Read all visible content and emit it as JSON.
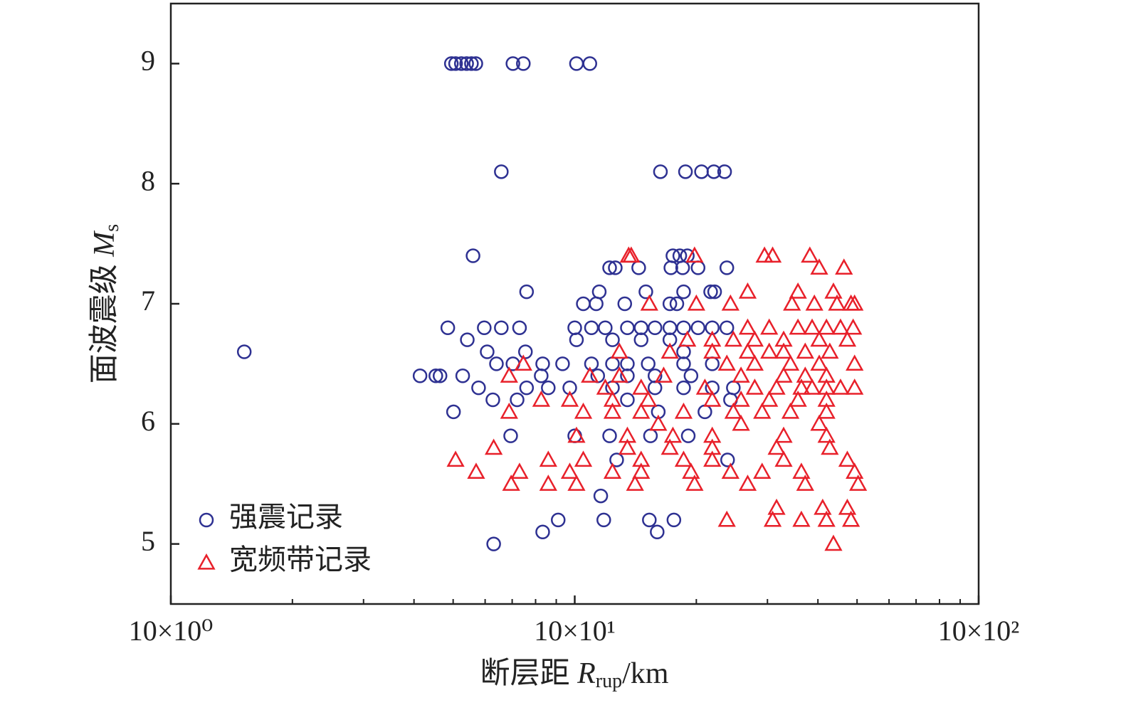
{
  "chart_data": {
    "type": "scatter",
    "xlabel": [
      "断层距 ",
      "R",
      "rup",
      "/km"
    ],
    "ylabel": [
      "面波震级 ",
      "M",
      "s"
    ],
    "xscale": "log",
    "xlim": [
      10,
      1000
    ],
    "xticks": [
      {
        "value": 10,
        "label": "10×10⁰"
      },
      {
        "value": 100,
        "label": "10×10¹"
      },
      {
        "value": 1000,
        "label": "10×10²"
      }
    ],
    "xminorticks": [
      20,
      30,
      40,
      50,
      60,
      70,
      80,
      90,
      200,
      300,
      400,
      500,
      600,
      700,
      800,
      900
    ],
    "ylim": [
      4.5,
      9.5
    ],
    "yticks": [
      5,
      6,
      7,
      8,
      9
    ],
    "legend": "lower left",
    "series": [
      {
        "name": "强震记录",
        "color": "#2e3192",
        "marker": "circle",
        "x": [
          49.5,
          50.7,
          52.4,
          54,
          55.5,
          56.9,
          70.3,
          74.6,
          101,
          109,
          65.8,
          163,
          188,
          206,
          221,
          235,
          56,
          175,
          182,
          190,
          122,
          126,
          144,
          173,
          185,
          202,
          238,
          76,
          115,
          150,
          186,
          217,
          222,
          105,
          113,
          133,
          172,
          179,
          15.2,
          48.5,
          59.7,
          65.8,
          73,
          100,
          110,
          119,
          135,
          146,
          158,
          172,
          186,
          202,
          219,
          238,
          54.2,
          101,
          124,
          146,
          172,
          60.7,
          75.5,
          186,
          64,
          70.3,
          83.3,
          93.3,
          110,
          124,
          135,
          152,
          186,
          219,
          41.4,
          45.3,
          46.4,
          52.8,
          82.6,
          114,
          135,
          158,
          194,
          57.8,
          76,
          86,
          97.2,
          124,
          158,
          186,
          219,
          247,
          62.7,
          72,
          135,
          243,
          50.1,
          161,
          210,
          69.4,
          100,
          122,
          154,
          191,
          127,
          239,
          116,
          91,
          118,
          153,
          176,
          83.3,
          160,
          63
        ],
        "values": [
          9,
          9,
          9,
          9,
          9,
          9,
          9,
          9,
          9,
          9,
          8.1,
          8.1,
          8.1,
          8.1,
          8.1,
          8.1,
          7.4,
          7.4,
          7.4,
          7.4,
          7.3,
          7.3,
          7.3,
          7.3,
          7.3,
          7.3,
          7.3,
          7.1,
          7.1,
          7.1,
          7.1,
          7.1,
          7.1,
          7,
          7,
          7,
          7,
          7,
          6.6,
          6.8,
          6.8,
          6.8,
          6.8,
          6.8,
          6.8,
          6.8,
          6.8,
          6.8,
          6.8,
          6.8,
          6.8,
          6.8,
          6.8,
          6.8,
          6.7,
          6.7,
          6.7,
          6.7,
          6.7,
          6.6,
          6.6,
          6.6,
          6.5,
          6.5,
          6.5,
          6.5,
          6.5,
          6.5,
          6.5,
          6.5,
          6.5,
          6.5,
          6.4,
          6.4,
          6.4,
          6.4,
          6.4,
          6.4,
          6.4,
          6.4,
          6.4,
          6.3,
          6.3,
          6.3,
          6.3,
          6.3,
          6.3,
          6.3,
          6.3,
          6.3,
          6.2,
          6.2,
          6.2,
          6.2,
          6.1,
          6.1,
          6.1,
          5.9,
          5.9,
          5.9,
          5.9,
          5.9,
          5.7,
          5.7,
          5.4,
          5.2,
          5.2,
          5.2,
          5.2,
          5.1,
          5.1,
          5
        ]
      },
      {
        "name": "宽频带记录",
        "color": "#e8202a",
        "marker": "triangle",
        "x": [
          136,
          138,
          198,
          295,
          309,
          382,
          403,
          464,
          268,
          357,
          437,
          153,
          200,
          243,
          345,
          392,
          446,
          483,
          493,
          268,
          303,
          357,
          387,
          420,
          455,
          489,
          190,
          219,
          247,
          279,
          329,
          403,
          473,
          129,
          172,
          219,
          268,
          303,
          329,
          372,
          428,
          74.6,
          238,
          279,
          342,
          403,
          493,
          68.8,
          109,
          129,
          166,
          258,
          329,
          372,
          420,
          119,
          146,
          210,
          279,
          316,
          364,
          387,
          420,
          455,
          493,
          82.6,
          97.2,
          124,
          152,
          219,
          258,
          303,
          357,
          420,
          68.8,
          105,
          124,
          146,
          186,
          247,
          291,
          342,
          420,
          161,
          258,
          403,
          101,
          135,
          175,
          219,
          329,
          420,
          63,
          135,
          172,
          219,
          316,
          428,
          50.7,
          86,
          105,
          146,
          186,
          219,
          329,
          473,
          57,
          73,
          97.2,
          124,
          146,
          194,
          243,
          291,
          364,
          493,
          69.6,
          86,
          101,
          141,
          198,
          268,
          372,
          503,
          316,
          411,
          473,
          238,
          309,
          364,
          420,
          483,
          437
        ],
        "values": [
          7.4,
          7.4,
          7.4,
          7.4,
          7.4,
          7.4,
          7.3,
          7.3,
          7.1,
          7.1,
          7.1,
          7,
          7,
          7,
          7,
          7,
          7,
          7,
          7,
          6.8,
          6.8,
          6.8,
          6.8,
          6.8,
          6.8,
          6.8,
          6.7,
          6.7,
          6.7,
          6.7,
          6.7,
          6.7,
          6.7,
          6.6,
          6.6,
          6.6,
          6.6,
          6.6,
          6.6,
          6.6,
          6.6,
          6.5,
          6.5,
          6.5,
          6.5,
          6.5,
          6.5,
          6.4,
          6.4,
          6.4,
          6.4,
          6.4,
          6.4,
          6.4,
          6.4,
          6.3,
          6.3,
          6.3,
          6.3,
          6.3,
          6.3,
          6.3,
          6.3,
          6.3,
          6.3,
          6.2,
          6.2,
          6.2,
          6.2,
          6.2,
          6.2,
          6.2,
          6.2,
          6.2,
          6.1,
          6.1,
          6.1,
          6.1,
          6.1,
          6.1,
          6.1,
          6.1,
          6.1,
          6,
          6,
          6,
          5.9,
          5.9,
          5.9,
          5.9,
          5.9,
          5.9,
          5.8,
          5.8,
          5.8,
          5.8,
          5.8,
          5.8,
          5.7,
          5.7,
          5.7,
          5.7,
          5.7,
          5.7,
          5.7,
          5.7,
          5.6,
          5.6,
          5.6,
          5.6,
          5.6,
          5.6,
          5.6,
          5.6,
          5.6,
          5.6,
          5.5,
          5.5,
          5.5,
          5.5,
          5.5,
          5.5,
          5.5,
          5.5,
          5.3,
          5.3,
          5.3,
          5.2,
          5.2,
          5.2,
          5.2,
          5.2,
          5
        ]
      }
    ]
  }
}
